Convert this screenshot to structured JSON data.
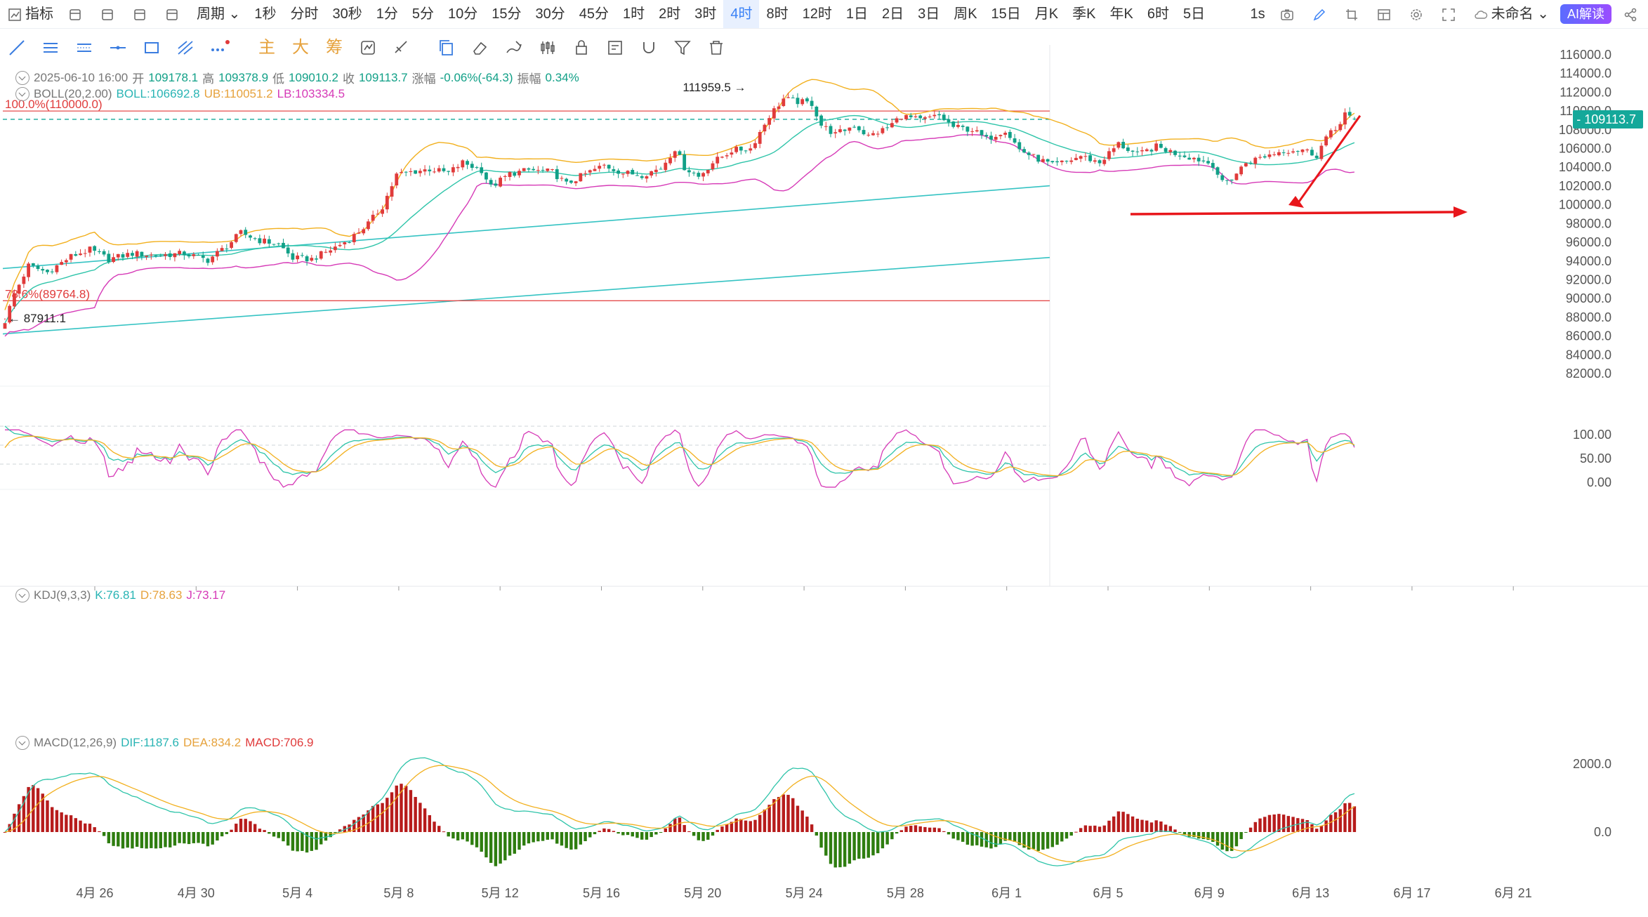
{
  "topbar": {
    "items": [
      "指标",
      "",
      "",
      "",
      "",
      "周期",
      "1秒",
      "分时",
      "30秒",
      "1分",
      "5分",
      "10分",
      "15分",
      "30分",
      "45分",
      "1时",
      "2时",
      "3时",
      "4时",
      "8时",
      "12时",
      "1日",
      "2日",
      "3日",
      "周K",
      "15日",
      "月K",
      "季K",
      "年K",
      "6时",
      "5日"
    ],
    "active_index": 18,
    "right": {
      "interval": "1s",
      "layout_name": "未命名",
      "ai_label": "AI解读"
    }
  },
  "drawbar": {
    "main_label": "主",
    "big_label": "大",
    "chip_label": "筹"
  },
  "ohlc": {
    "date": "2025-06-10 16:00",
    "open_label": "开",
    "open": "109178.1",
    "high_label": "高",
    "high": "109378.9",
    "low_label": "低",
    "low": "109010.2",
    "close_label": "收",
    "close": "109113.7",
    "change_label": "涨幅",
    "change": "-0.06%(-64.3)",
    "amp_label": "振幅",
    "amp": "0.34%"
  },
  "boll": {
    "name": "BOLL(20,2.00)",
    "mid": "BOLL:106692.8",
    "ub": "UB:110051.2",
    "lb": "LB:103334.5"
  },
  "kdj": {
    "name": "KDJ(9,3,3)",
    "k": "K:76.81",
    "d": "D:78.63",
    "j": "J:73.17"
  },
  "macd": {
    "name": "MACD(12,26,9)",
    "dif": "DIF:1187.6",
    "dea": "DEA:834.2",
    "macd": "MACD:706.9"
  },
  "colors": {
    "up": "#e03b3b",
    "down": "#11a087",
    "mid": "#2ec4a9",
    "upper": "#f2b01e",
    "lower": "#d63ab7",
    "trend": "#35c3c3",
    "level": "#e54d4d",
    "arrow": "#e8161b"
  },
  "chart_data": {
    "type": "candlestick",
    "price_axis": {
      "ticks": [
        82000,
        84000,
        86000,
        88000,
        90000,
        92000,
        94000,
        96000,
        98000,
        100000,
        102000,
        104000,
        106000,
        108000,
        110000,
        112000,
        114000,
        116000
      ],
      "labels": [
        "82000.0",
        "84000.0",
        "86000.0",
        "88000.0",
        "90000.0",
        "92000.0",
        "94000.0",
        "96000.0",
        "98000.0",
        "100000.0",
        "102000.0",
        "104000.0",
        "106000.0",
        "108000.0",
        "110000.0",
        "112000.0",
        "114000.0",
        "116000.0"
      ]
    },
    "date_axis": [
      "4月 26",
      "4月 30",
      "5月 4",
      "5月 8",
      "5月 12",
      "5月 16",
      "5月 20",
      "5月 24",
      "5月 28",
      "6月 1",
      "6月 5",
      "6月 9",
      "6月 13",
      "6月 17",
      "6月 21"
    ],
    "current_price": "109113.7",
    "high_marker": "111959.5",
    "low_marker": "87911.1",
    "fib_levels": [
      {
        "label": "100.0%(110000.0)",
        "value": 110000
      },
      {
        "label": "78.6%(89764.8)",
        "value": 89764.8
      }
    ],
    "trendlines": [
      {
        "from": [
          "4月 24",
          93500
        ],
        "to": [
          "6月 14",
          104500
        ]
      },
      {
        "from": [
          "4月 24",
          86000
        ],
        "to": [
          "6月 14",
          97000
        ]
      }
    ],
    "kdj_axis": [
      "100.00",
      "50.00",
      "0.00"
    ],
    "macd_axis": [
      "2000.0",
      "0.0"
    ],
    "anchors": [
      {
        "t": 0,
        "p": 87600
      },
      {
        "t": 2,
        "p": 90500
      },
      {
        "t": 5,
        "p": 93500
      },
      {
        "t": 9,
        "p": 92800
      },
      {
        "t": 14,
        "p": 94500
      },
      {
        "t": 18,
        "p": 95200
      },
      {
        "t": 22,
        "p": 94200
      },
      {
        "t": 27,
        "p": 94800
      },
      {
        "t": 32,
        "p": 94600
      },
      {
        "t": 38,
        "p": 94800
      },
      {
        "t": 43,
        "p": 94100
      },
      {
        "t": 47,
        "p": 95600
      },
      {
        "t": 50,
        "p": 97000
      },
      {
        "t": 54,
        "p": 96200
      },
      {
        "t": 58,
        "p": 95800
      },
      {
        "t": 61,
        "p": 94300
      },
      {
        "t": 65,
        "p": 94200
      },
      {
        "t": 69,
        "p": 95200
      },
      {
        "t": 73,
        "p": 96300
      },
      {
        "t": 77,
        "p": 98000
      },
      {
        "t": 80,
        "p": 99800
      },
      {
        "t": 83,
        "p": 103200
      },
      {
        "t": 86,
        "p": 103500
      },
      {
        "t": 90,
        "p": 103800
      },
      {
        "t": 94,
        "p": 103400
      },
      {
        "t": 97,
        "p": 104500
      },
      {
        "t": 101,
        "p": 103700
      },
      {
        "t": 103,
        "p": 101900
      },
      {
        "t": 107,
        "p": 103300
      },
      {
        "t": 111,
        "p": 103700
      },
      {
        "t": 116,
        "p": 103500
      },
      {
        "t": 119,
        "p": 102200
      },
      {
        "t": 123,
        "p": 103300
      },
      {
        "t": 127,
        "p": 104200
      },
      {
        "t": 131,
        "p": 103400
      },
      {
        "t": 135,
        "p": 103200
      },
      {
        "t": 139,
        "p": 103900
      },
      {
        "t": 142,
        "p": 106000
      },
      {
        "t": 144,
        "p": 104000
      },
      {
        "t": 147,
        "p": 103000
      },
      {
        "t": 150,
        "p": 104500
      },
      {
        "t": 154,
        "p": 105800
      },
      {
        "t": 158,
        "p": 106000
      },
      {
        "t": 162,
        "p": 109500
      },
      {
        "t": 165,
        "p": 111300
      },
      {
        "t": 168,
        "p": 111000
      },
      {
        "t": 171,
        "p": 110800
      },
      {
        "t": 173,
        "p": 108500
      },
      {
        "t": 176,
        "p": 107500
      },
      {
        "t": 180,
        "p": 108500
      },
      {
        "t": 183,
        "p": 107300
      },
      {
        "t": 187,
        "p": 108200
      },
      {
        "t": 190,
        "p": 109500
      },
      {
        "t": 194,
        "p": 109000
      },
      {
        "t": 198,
        "p": 109500
      },
      {
        "t": 201,
        "p": 108300
      },
      {
        "t": 205,
        "p": 108000
      },
      {
        "t": 208,
        "p": 107000
      },
      {
        "t": 212,
        "p": 108000
      },
      {
        "t": 215,
        "p": 105900
      },
      {
        "t": 218,
        "p": 105100
      },
      {
        "t": 222,
        "p": 104200
      },
      {
        "t": 225,
        "p": 104600
      },
      {
        "t": 228,
        "p": 105200
      },
      {
        "t": 232,
        "p": 104500
      },
      {
        "t": 236,
        "p": 106500
      },
      {
        "t": 240,
        "p": 105300
      },
      {
        "t": 244,
        "p": 106200
      },
      {
        "t": 248,
        "p": 105500
      },
      {
        "t": 252,
        "p": 105000
      },
      {
        "t": 256,
        "p": 104300
      },
      {
        "t": 258,
        "p": 102300
      },
      {
        "t": 260,
        "p": 102800
      },
      {
        "t": 263,
        "p": 104500
      },
      {
        "t": 267,
        "p": 105200
      },
      {
        "t": 271,
        "p": 105800
      },
      {
        "t": 275,
        "p": 105900
      },
      {
        "t": 278,
        "p": 105300
      },
      {
        "t": 280,
        "p": 107200
      },
      {
        "t": 282,
        "p": 108000
      },
      {
        "t": 284,
        "p": 109800
      },
      {
        "t": 285,
        "p": 109300
      },
      {
        "t": 286,
        "p": 109113.7
      }
    ]
  }
}
